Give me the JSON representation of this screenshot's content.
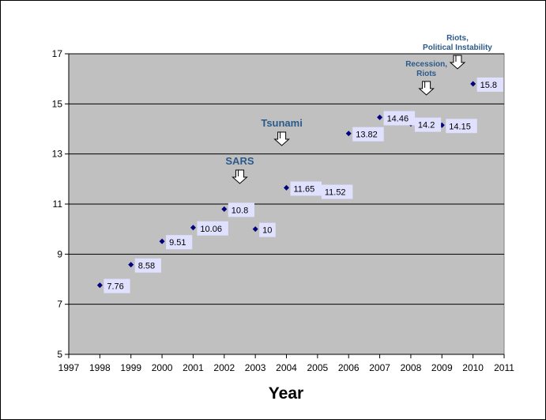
{
  "chart_data": {
    "type": "scatter",
    "title": "",
    "xlabel": "Year",
    "ylabel": "",
    "xlim": [
      1997,
      2011
    ],
    "ylim": [
      5,
      17
    ],
    "x_ticks": [
      "1997",
      "1998",
      "1999",
      "2000",
      "2001",
      "2002",
      "2003",
      "2004",
      "2005",
      "2006",
      "2007",
      "2008",
      "2009",
      "2010",
      "2011"
    ],
    "y_ticks": [
      "5",
      "7",
      "9",
      "11",
      "13",
      "15",
      "17"
    ],
    "grid": "horizontal major gridlines",
    "legend": "none",
    "series": [
      {
        "x": [
          1998,
          1999,
          2000,
          2001,
          2002,
          2003,
          2004,
          2005,
          2006,
          2007,
          2008,
          2009,
          2010
        ],
        "y": [
          7.76,
          8.58,
          9.51,
          10.06,
          10.8,
          10,
          11.65,
          11.52,
          13.82,
          14.46,
          14.2,
          14.15,
          15.8
        ],
        "labels": [
          "7.76",
          "8.58",
          "9.51",
          "10.06",
          "10.8",
          "10",
          "11.65",
          "11.52",
          "13.82",
          "14.46",
          "14.2",
          "14.15",
          "15.8"
        ]
      }
    ],
    "annotations": [
      {
        "lines": [
          "SARS"
        ],
        "x": 2002.5,
        "size": "large"
      },
      {
        "lines": [
          "Tsunami"
        ],
        "x": 2003.85,
        "size": "large"
      },
      {
        "lines": [
          "Recession,",
          "Riots"
        ],
        "x": 2008.5,
        "size": "small"
      },
      {
        "lines": [
          "Riots,",
          "Political Instability"
        ],
        "x": 2009.5,
        "size": "small"
      }
    ],
    "colors": {
      "plot_background": "#c0c0c0",
      "marker": "#000080",
      "label_background": "#e0e0ff",
      "annotation_text": "#2a5a8a"
    }
  }
}
